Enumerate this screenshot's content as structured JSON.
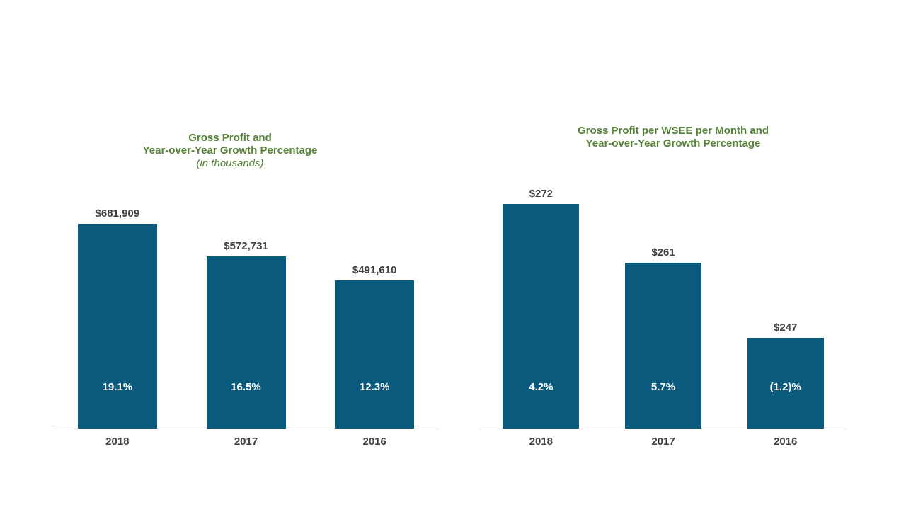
{
  "page": {
    "background": "#ffffff",
    "description": "presentation slide with two bar charts"
  },
  "chart_data": [
    {
      "type": "bar",
      "title": "Gross Profit and Year-over-Year Growth Percentage",
      "title_lines": [
        "Gross Profit and",
        "Year-over-Year Growth Percentage"
      ],
      "subtitle": "(in thousands)",
      "categories": [
        "2018",
        "2017",
        "2016"
      ],
      "values": [
        681909,
        572731,
        491610
      ],
      "value_labels": [
        "$681,909",
        "$572,731",
        "$491,610"
      ],
      "growth_values": [
        19.1,
        16.5,
        12.3
      ],
      "growth_labels": [
        "19.1%",
        "16.5%",
        "12.3%"
      ],
      "xlabel": "",
      "ylabel": "",
      "ylim": [
        0,
        700000
      ],
      "grid": false,
      "legend": "none",
      "bar_color": "#0a5a7e",
      "title_color": "#538135",
      "label_color": "#404040",
      "inside_label_color": "#ffffff",
      "axis_line_color": "#d9d9d9"
    },
    {
      "type": "bar",
      "title": "Gross Profit per WSEE per Month and Year-over-Year Growth Percentage",
      "title_lines": [
        "Gross Profit per WSEE per Month and",
        "Year-over-Year Growth Percentage"
      ],
      "subtitle": "",
      "categories": [
        "2018",
        "2017",
        "2016"
      ],
      "values": [
        272,
        261,
        247
      ],
      "value_labels": [
        "$272",
        "$261",
        "$247"
      ],
      "growth_values": [
        4.2,
        5.7,
        -1.2
      ],
      "growth_labels": [
        "4.2%",
        "5.7%",
        "(1.2)%"
      ],
      "xlabel": "",
      "ylabel": "",
      "ylim": [
        230,
        275
      ],
      "grid": false,
      "legend": "none",
      "bar_color": "#0a5a7e",
      "title_color": "#538135",
      "label_color": "#404040",
      "inside_label_color": "#ffffff",
      "axis_line_color": "#d9d9d9"
    }
  ]
}
